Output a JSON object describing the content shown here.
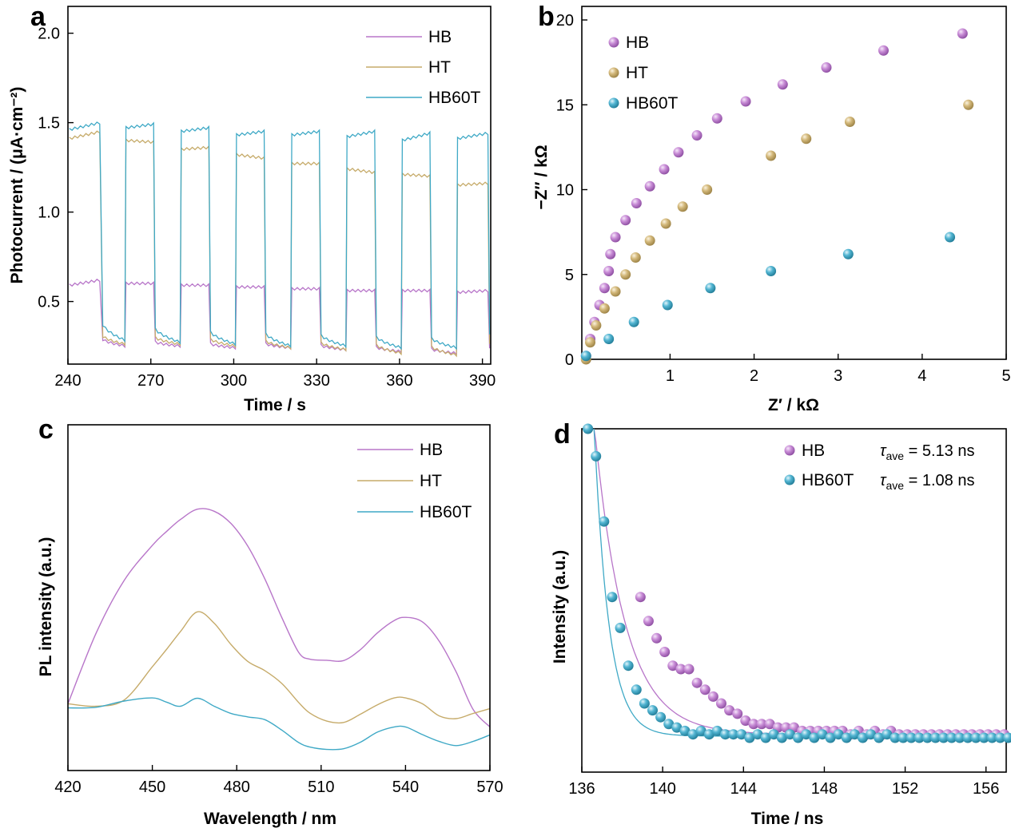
{
  "colors": {
    "HB": "#b876c9",
    "HT": "#c6ab6a",
    "HB60T": "#3fa9c6"
  },
  "chart_data": [
    {
      "panel": "a",
      "type": "line",
      "xlabel": "Time / s",
      "ylabel": "Photocurrent / (μA·cm⁻²)",
      "xlim": [
        240,
        393
      ],
      "ylim": [
        0.15,
        2.15
      ],
      "xticks": [
        240,
        270,
        300,
        330,
        360,
        390
      ],
      "xtick_labels": [
        "240",
        "270",
        "300",
        "330",
        "360",
        "390"
      ],
      "yticks": [
        0.5,
        1.0,
        1.5,
        2.0
      ],
      "ytick_labels": [
        "0.5",
        "1.0",
        "1.5",
        "2.0"
      ],
      "legend": "top-right",
      "on_intervals": [
        [
          240.5,
          252
        ],
        [
          261,
          271
        ],
        [
          281,
          291
        ],
        [
          301,
          311
        ],
        [
          321,
          331
        ],
        [
          341,
          351
        ],
        [
          361,
          371
        ],
        [
          381,
          392
        ]
      ],
      "series": [
        {
          "name": "HB",
          "color_key": "HB",
          "on_values": [
            [
              0.59,
              0.62
            ],
            [
              0.6,
              0.6
            ],
            [
              0.59,
              0.59
            ],
            [
              0.58,
              0.58
            ],
            [
              0.57,
              0.57
            ],
            [
              0.56,
              0.56
            ],
            [
              0.56,
              0.56
            ],
            [
              0.55,
              0.56
            ]
          ],
          "off_values": [
            [
              0.3,
              0.25
            ],
            [
              0.28,
              0.25
            ],
            [
              0.27,
              0.24
            ],
            [
              0.27,
              0.24
            ],
            [
              0.26,
              0.23
            ],
            [
              0.25,
              0.22
            ],
            [
              0.24,
              0.21
            ],
            [
              0.26,
              0.24
            ]
          ]
        },
        {
          "name": "HT",
          "color_key": "HT",
          "on_values": [
            [
              1.41,
              1.45
            ],
            [
              1.4,
              1.39
            ],
            [
              1.35,
              1.36
            ],
            [
              1.32,
              1.3
            ],
            [
              1.27,
              1.27
            ],
            [
              1.24,
              1.22
            ],
            [
              1.21,
              1.2
            ],
            [
              1.15,
              1.16
            ]
          ],
          "off_values": [
            [
              0.32,
              0.26
            ],
            [
              0.31,
              0.26
            ],
            [
              0.3,
              0.25
            ],
            [
              0.29,
              0.24
            ],
            [
              0.28,
              0.23
            ],
            [
              0.27,
              0.21
            ],
            [
              0.26,
              0.2
            ],
            [
              0.3,
              0.26
            ]
          ]
        },
        {
          "name": "HB60T",
          "color_key": "HB60T",
          "on_values": [
            [
              1.46,
              1.5
            ],
            [
              1.47,
              1.49
            ],
            [
              1.45,
              1.47
            ],
            [
              1.43,
              1.45
            ],
            [
              1.43,
              1.45
            ],
            [
              1.42,
              1.45
            ],
            [
              1.4,
              1.44
            ],
            [
              1.41,
              1.44
            ]
          ],
          "off_values": [
            [
              0.4,
              0.28
            ],
            [
              0.37,
              0.27
            ],
            [
              0.35,
              0.26
            ],
            [
              0.34,
              0.25
            ],
            [
              0.33,
              0.25
            ],
            [
              0.32,
              0.24
            ],
            [
              0.31,
              0.24
            ],
            [
              0.4,
              0.3
            ]
          ]
        }
      ]
    },
    {
      "panel": "b",
      "type": "scatter",
      "xlabel": "Z′ / kΩ",
      "ylabel": "−Z″ / kΩ",
      "xlim": [
        -0.05,
        5
      ],
      "ylim": [
        0,
        20.8
      ],
      "xticks": [
        1,
        2,
        3,
        4,
        5
      ],
      "xtick_labels": [
        "1",
        "2",
        "3",
        "4",
        "5"
      ],
      "yticks": [
        0,
        5,
        10,
        15,
        20
      ],
      "ytick_labels": [
        "0",
        "5",
        "10",
        "15",
        "20"
      ],
      "legend": "top-left",
      "series": [
        {
          "name": "HB",
          "color_key": "HB",
          "x": [
            0.0,
            0.05,
            0.1,
            0.16,
            0.22,
            0.27,
            0.29,
            0.35,
            0.47,
            0.6,
            0.76,
            0.93,
            1.1,
            1.32,
            1.56,
            1.9,
            2.34,
            2.86,
            3.54,
            4.48
          ],
          "y": [
            0.2,
            1.2,
            2.2,
            3.2,
            4.2,
            5.2,
            6.2,
            7.2,
            8.2,
            9.2,
            10.2,
            11.2,
            12.2,
            13.2,
            14.2,
            15.2,
            16.2,
            17.2,
            18.2,
            19.2
          ]
        },
        {
          "name": "HT",
          "color_key": "HT",
          "x": [
            0.0,
            0.05,
            0.12,
            0.22,
            0.35,
            0.47,
            0.59,
            0.76,
            0.95,
            1.15,
            1.44,
            2.2,
            2.62,
            3.14,
            4.55
          ],
          "y": [
            0.0,
            1.0,
            2.0,
            3.0,
            4.0,
            5.0,
            6.0,
            7.0,
            8.0,
            9.0,
            10.0,
            12.0,
            13.0,
            14.0,
            15.0
          ]
        },
        {
          "name": "HB60T",
          "color_key": "HB60T",
          "x": [
            0.0,
            0.27,
            0.57,
            0.97,
            1.48,
            2.2,
            3.12,
            4.33
          ],
          "y": [
            0.2,
            1.2,
            2.2,
            3.2,
            4.2,
            5.2,
            6.2,
            7.2
          ]
        }
      ]
    },
    {
      "panel": "c",
      "type": "line",
      "xlabel": "Wavelength / nm",
      "ylabel": "PL intensity (a.u.)",
      "xlim": [
        420,
        570
      ],
      "ylim": [
        0,
        1
      ],
      "xticks": [
        420,
        450,
        480,
        510,
        540,
        570
      ],
      "xtick_labels": [
        "420",
        "450",
        "480",
        "510",
        "540",
        "570"
      ],
      "legend": "top-right",
      "x": [
        420,
        430,
        440,
        450,
        455,
        460,
        466,
        472,
        478,
        484,
        490,
        496,
        502,
        506,
        512,
        518,
        524,
        530,
        536,
        540,
        546,
        552,
        558,
        564,
        570
      ],
      "series": [
        {
          "name": "HB",
          "color_key": "HB",
          "values": [
            0.193,
            0.397,
            0.55,
            0.651,
            0.691,
            0.726,
            0.756,
            0.75,
            0.714,
            0.648,
            0.554,
            0.443,
            0.342,
            0.322,
            0.319,
            0.318,
            0.35,
            0.398,
            0.434,
            0.443,
            0.43,
            0.374,
            0.285,
            0.177,
            0.126
          ]
        },
        {
          "name": "HT",
          "color_key": "HT",
          "values": [
            0.193,
            0.186,
            0.204,
            0.3,
            0.35,
            0.402,
            0.459,
            0.426,
            0.364,
            0.315,
            0.289,
            0.252,
            0.197,
            0.166,
            0.143,
            0.139,
            0.163,
            0.19,
            0.21,
            0.21,
            0.193,
            0.158,
            0.15,
            0.165,
            0.179
          ]
        },
        {
          "name": "HB60T",
          "color_key": "HB60T",
          "values": [
            0.181,
            0.183,
            0.201,
            0.21,
            0.198,
            0.186,
            0.209,
            0.186,
            0.165,
            0.155,
            0.147,
            0.117,
            0.081,
            0.068,
            0.061,
            0.063,
            0.082,
            0.111,
            0.126,
            0.126,
            0.104,
            0.084,
            0.072,
            0.084,
            0.103
          ]
        }
      ]
    },
    {
      "panel": "d",
      "type": "scatter",
      "xlabel": "Time / ns",
      "ylabel": "Intensity (a.u.)",
      "xlim": [
        136,
        157
      ],
      "ylim": [
        0,
        1
      ],
      "xticks": [
        136,
        140,
        144,
        148,
        152,
        156
      ],
      "xtick_labels": [
        "136",
        "140",
        "144",
        "148",
        "152",
        "156"
      ],
      "legend": "top-right",
      "annotations": [
        {
          "series": "HB",
          "label": "τ",
          "subscript": "ave",
          "text": "= 5.13 ns"
        },
        {
          "series": "HB60T",
          "label": "τ",
          "subscript": "ave",
          "text": "= 1.08 ns"
        }
      ],
      "series": [
        {
          "name": "HB",
          "color_key": "HB",
          "fit_tau": 1.5,
          "fit_y0": 0.11,
          "fit_t0": 136.6,
          "x": [
            138.9,
            139.3,
            139.7,
            140.1,
            140.5,
            140.9,
            141.3,
            141.7,
            142.1,
            142.5,
            142.9,
            143.3,
            143.7,
            144.1,
            144.5,
            144.9,
            145.3,
            145.7,
            146.1,
            146.5,
            146.9,
            147.3,
            147.7,
            148.1,
            148.5,
            148.9,
            149.3,
            149.7,
            150.1,
            150.5,
            150.9,
            151.3,
            151.7,
            152.1,
            152.5,
            152.9,
            153.3,
            153.7,
            154.1,
            154.5,
            154.9,
            155.3,
            155.7,
            156.1,
            156.5,
            156.9
          ],
          "y": [
            0.51,
            0.44,
            0.39,
            0.35,
            0.31,
            0.3,
            0.3,
            0.26,
            0.24,
            0.22,
            0.2,
            0.18,
            0.17,
            0.15,
            0.14,
            0.14,
            0.14,
            0.13,
            0.13,
            0.13,
            0.12,
            0.12,
            0.12,
            0.12,
            0.12,
            0.12,
            0.11,
            0.12,
            0.11,
            0.12,
            0.11,
            0.12,
            0.11,
            0.11,
            0.11,
            0.11,
            0.11,
            0.11,
            0.11,
            0.11,
            0.11,
            0.11,
            0.11,
            0.11,
            0.11,
            0.11
          ]
        },
        {
          "name": "HB60T",
          "color_key": "HB60T",
          "fit_tau": 0.72,
          "fit_y0": 0.105,
          "fit_t0": 136.6,
          "x": [
            136.3,
            136.7,
            137.1,
            137.5,
            137.9,
            138.3,
            138.7,
            139.1,
            139.5,
            139.9,
            140.3,
            140.7,
            141.1,
            141.5,
            141.9,
            142.3,
            142.7,
            143.1,
            143.5,
            143.9,
            144.3,
            144.7,
            145.1,
            145.5,
            145.9,
            146.3,
            146.7,
            147.1,
            147.5,
            147.9,
            148.3,
            148.7,
            149.1,
            149.5,
            149.9,
            150.3,
            150.7,
            151.1,
            151.5,
            151.9,
            152.3,
            152.7,
            153.1,
            153.5,
            153.9,
            154.3,
            154.7,
            155.1,
            155.5,
            155.9,
            156.3,
            156.7,
            157.1
          ],
          "y": [
            1.0,
            0.92,
            0.73,
            0.51,
            0.42,
            0.31,
            0.24,
            0.2,
            0.18,
            0.16,
            0.14,
            0.13,
            0.12,
            0.11,
            0.12,
            0.11,
            0.12,
            0.11,
            0.11,
            0.11,
            0.1,
            0.11,
            0.1,
            0.11,
            0.1,
            0.11,
            0.1,
            0.11,
            0.1,
            0.11,
            0.1,
            0.11,
            0.1,
            0.11,
            0.1,
            0.11,
            0.1,
            0.11,
            0.1,
            0.1,
            0.1,
            0.1,
            0.1,
            0.1,
            0.1,
            0.1,
            0.1,
            0.1,
            0.1,
            0.1,
            0.1,
            0.1,
            0.1
          ]
        }
      ]
    }
  ]
}
